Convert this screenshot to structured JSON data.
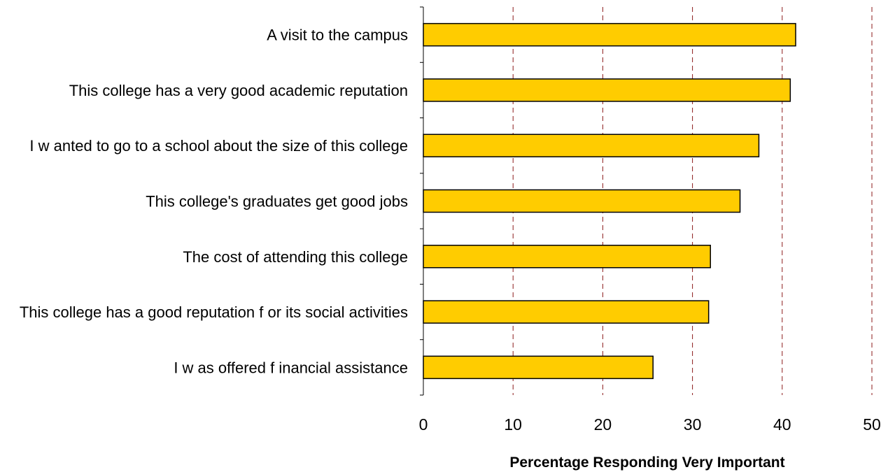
{
  "chart_data": {
    "type": "bar",
    "orientation": "horizontal",
    "categories": [
      "A visit to the campus",
      "This college has a very good academic reputation",
      "I w anted to go to a school about the size of this college",
      "This college's graduates get good jobs",
      "The cost of attending this college",
      "This college has a good reputation f or its social activities",
      "I w as offered f inancial assistance"
    ],
    "values": [
      41.5,
      40.9,
      37.4,
      35.3,
      32.0,
      31.8,
      25.6
    ],
    "xlabel": "Percentage Responding Very Important",
    "ylabel": "",
    "xlim": [
      0,
      50
    ],
    "xticks": [
      "0",
      "10",
      "20",
      "30",
      "40",
      "50"
    ],
    "grid": "vertical dashed",
    "bar_color": "#FFCC00",
    "grid_color": "#8B1A1A"
  }
}
